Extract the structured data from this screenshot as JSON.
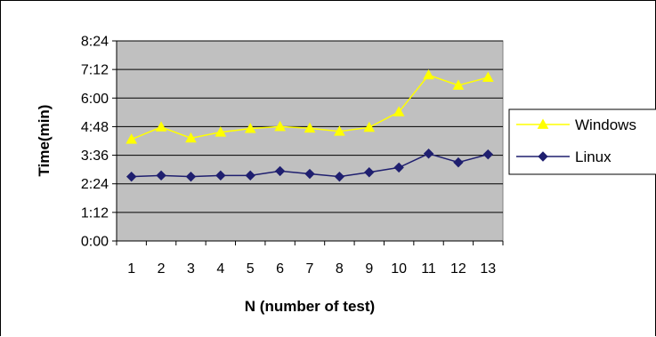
{
  "chart_data": {
    "type": "line",
    "title": "",
    "xlabel": "N (number of test)",
    "ylabel": "Time(min)",
    "categories": [
      "1",
      "2",
      "3",
      "4",
      "5",
      "6",
      "7",
      "8",
      "9",
      "10",
      "11",
      "12",
      "13"
    ],
    "y_ticks": [
      "0:00",
      "1:12",
      "2:24",
      "3:36",
      "4:48",
      "6:00",
      "7:12",
      "8:24"
    ],
    "y_unit": "minutes",
    "ylim": [
      0,
      504
    ],
    "grid": true,
    "plot_background": "#c0c0c0",
    "legend_position": "right",
    "series": [
      {
        "name": "Windows",
        "color": "#ffff00",
        "marker": "triangle",
        "values": [
          256,
          287,
          259,
          274,
          283,
          288,
          284,
          276,
          286,
          325,
          418,
          392,
          412
        ]
      },
      {
        "name": "Linux",
        "color": "#1f1f6f",
        "marker": "diamond",
        "values": [
          162,
          165,
          162,
          165,
          165,
          176,
          169,
          162,
          173,
          185,
          220,
          198,
          218
        ]
      }
    ]
  }
}
